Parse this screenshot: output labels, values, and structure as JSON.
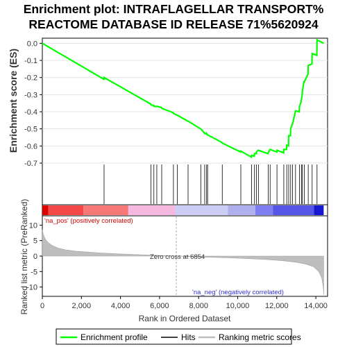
{
  "title_line1": "Enrichment plot: INTRAFLAGELLAR TRANSPORT%",
  "title_line2": "REACTOME DATABASE ID RELEASE 71%5620924",
  "colors": {
    "es_line": "#00ff00",
    "hits": "#000000",
    "ranked_fill": "#bebebe",
    "pos_label": "#cc0000",
    "neg_label": "#3333cc",
    "zero_cross_line": "#aaaaaa"
  },
  "chart_data": [
    {
      "type": "line",
      "name": "enrichment-score",
      "ylabel": "Enrichment score (ES)",
      "xlim": [
        0,
        14600
      ],
      "ylim": [
        -0.7,
        0.03
      ],
      "y_ticks": [
        0.0,
        -0.1,
        -0.2,
        -0.3,
        -0.4,
        -0.5,
        -0.6,
        -0.7
      ],
      "y_tick_labels": [
        "0.0",
        "-0.1",
        "-0.2",
        "-0.3",
        "-0.4",
        "-0.5",
        "-0.6",
        "-0.7"
      ],
      "grid": true,
      "series": [
        {
          "x": [
            0,
            3150,
            3160,
            5550,
            5560,
            5700,
            5710,
            5850,
            5860,
            6100,
            6110,
            6700,
            6710,
            6900,
            6910,
            7450,
            7460,
            8100,
            8110,
            8300,
            8310,
            8400,
            8410,
            8450,
            8460,
            9200,
            9210,
            10150,
            10160,
            10700,
            10710,
            10850,
            10860,
            10950,
            10960,
            11050,
            11060,
            11550,
            11560,
            11650,
            11660,
            12000,
            12010,
            12350,
            12360,
            12500,
            12510,
            12600,
            12610,
            12700,
            12710,
            12800,
            12810,
            12950,
            12960,
            13150,
            13160,
            13250,
            13260,
            13300,
            13310,
            13400,
            13410,
            13600,
            13610,
            13800,
            13810,
            14050,
            14060,
            14400
          ],
          "y": [
            0.0,
            -0.21,
            -0.2,
            -0.355,
            -0.36,
            -0.363,
            -0.368,
            -0.37,
            -0.368,
            -0.375,
            -0.38,
            -0.405,
            -0.41,
            -0.42,
            -0.42,
            -0.455,
            -0.455,
            -0.5,
            -0.5,
            -0.525,
            -0.528,
            -0.53,
            -0.527,
            -0.535,
            -0.535,
            -0.58,
            -0.583,
            -0.635,
            -0.63,
            -0.665,
            -0.655,
            -0.66,
            -0.645,
            -0.645,
            -0.635,
            -0.625,
            -0.625,
            -0.645,
            -0.64,
            -0.62,
            -0.62,
            -0.635,
            -0.625,
            -0.64,
            -0.62,
            -0.62,
            -0.595,
            -0.6,
            -0.54,
            -0.54,
            -0.5,
            -0.47,
            -0.47,
            -0.4,
            -0.395,
            -0.4,
            -0.37,
            -0.34,
            -0.33,
            -0.3,
            -0.28,
            -0.22,
            -0.225,
            -0.18,
            -0.13,
            -0.12,
            -0.06,
            -0.07,
            0.02,
            0.0
          ]
        }
      ]
    },
    {
      "type": "bar",
      "name": "hits",
      "xlim": [
        0,
        14600
      ],
      "x": [
        3160,
        5560,
        5710,
        5860,
        6110,
        6710,
        6910,
        7460,
        8110,
        8310,
        8410,
        8460,
        9210,
        10160,
        10710,
        10860,
        10960,
        11060,
        11560,
        11660,
        12010,
        12360,
        12510,
        12610,
        12710,
        12810,
        12960,
        13160,
        13260,
        13310,
        13410,
        13610,
        13810,
        14060
      ]
    },
    {
      "type": "area",
      "name": "ranked-list-metric",
      "ylabel": "Ranked list metric (PreRanked)",
      "xlabel": "Rank in Ordered Dataset",
      "xlim": [
        0,
        14600
      ],
      "ylim": [
        -13,
        13
      ],
      "x_ticks": [
        0,
        2000,
        4000,
        6000,
        8000,
        10000,
        12000,
        14000
      ],
      "x_tick_labels": [
        "0",
        "2,000",
        "4,000",
        "6,000",
        "8,000",
        "10,000",
        "12,000",
        "14,000"
      ],
      "y_ticks": [
        10,
        5,
        0,
        -5,
        -10
      ],
      "y_tick_labels": [
        "10",
        "5",
        "0",
        "-5",
        "-10"
      ],
      "zero_cross": 6854,
      "zero_cross_label": "Zero cross at 6854",
      "pos_label": "'na_pos' (positively correlated)",
      "neg_label": "'na_neg' (negatively correlated)",
      "x": [
        0,
        50,
        150,
        300,
        500,
        800,
        1200,
        1700,
        2300,
        3000,
        4000,
        5000,
        6000,
        6854,
        7500,
        8500,
        9500,
        10500,
        11500,
        12300,
        13000,
        13500,
        13900,
        14150,
        14300,
        14380,
        14400
      ],
      "values": [
        8.5,
        7.0,
        5.5,
        4.3,
        3.4,
        2.6,
        2.0,
        1.6,
        1.3,
        1.0,
        0.7,
        0.45,
        0.2,
        0.0,
        -0.15,
        -0.35,
        -0.55,
        -0.8,
        -1.1,
        -1.5,
        -2.0,
        -2.6,
        -3.5,
        -5.0,
        -7.0,
        -10.0,
        -12.5
      ]
    }
  ],
  "heat_bar": [
    {
      "from": 0,
      "to": 300,
      "color": "#dd0000"
    },
    {
      "from": 300,
      "to": 2100,
      "color": "#f44848"
    },
    {
      "from": 2100,
      "to": 4400,
      "color": "#f87878"
    },
    {
      "from": 4400,
      "to": 6800,
      "color": "#f7b8e0"
    },
    {
      "from": 6800,
      "to": 9500,
      "color": "#ccccf4"
    },
    {
      "from": 9500,
      "to": 10900,
      "color": "#b0b0ee"
    },
    {
      "from": 10900,
      "to": 11800,
      "color": "#7e7ef2"
    },
    {
      "from": 11800,
      "to": 13900,
      "color": "#5555e8"
    },
    {
      "from": 13900,
      "to": 14400,
      "color": "#1818d0"
    }
  ],
  "legend": {
    "items": [
      {
        "label": "Enrichment profile",
        "color": "#00ff00"
      },
      {
        "label": "Hits",
        "color": "#000000"
      },
      {
        "label": "Ranking metric scores",
        "color": "#bebebe"
      }
    ]
  }
}
